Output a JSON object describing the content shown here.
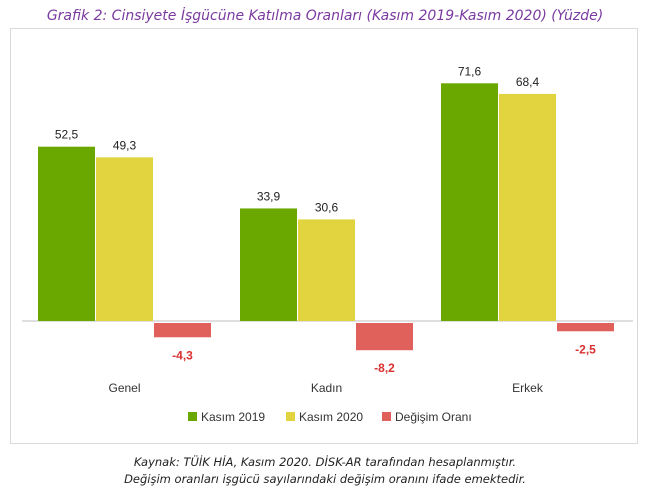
{
  "title": "Grafik 2: Cinsiyete İşgücüne Katılma Oranları (Kasım 2019-Kasım 2020) (Yüzde)",
  "caption_line1": "Kaynak: TÜİK HİA, Kasım 2020. DİSK-AR tarafından hesaplanmıştır.",
  "caption_line2": "Değişim oranları işgücü sayılarındaki değişim oranını ifade emektedir.",
  "chart_data": {
    "type": "bar",
    "categories": [
      "Genel",
      "Kadın",
      "Erkek"
    ],
    "series": [
      {
        "name": "Kasım 2019",
        "values": [
          52.5,
          33.9,
          71.6
        ],
        "labels": [
          "52,5",
          "33,9",
          "71,6"
        ],
        "color": "#6aa800"
      },
      {
        "name": "Kasım 2020",
        "values": [
          49.3,
          30.6,
          68.4
        ],
        "labels": [
          "49,3",
          "30,6",
          "68,4"
        ],
        "color": "#e2d43f"
      },
      {
        "name": "Değişim Oranı",
        "values": [
          -4.3,
          -8.2,
          -2.5
        ],
        "labels": [
          "-4,3",
          "-8,2",
          "-2,5"
        ],
        "color": "#e0605c"
      }
    ],
    "ylim": [
      -10,
      80
    ],
    "grid": false,
    "legend": "bottom"
  }
}
